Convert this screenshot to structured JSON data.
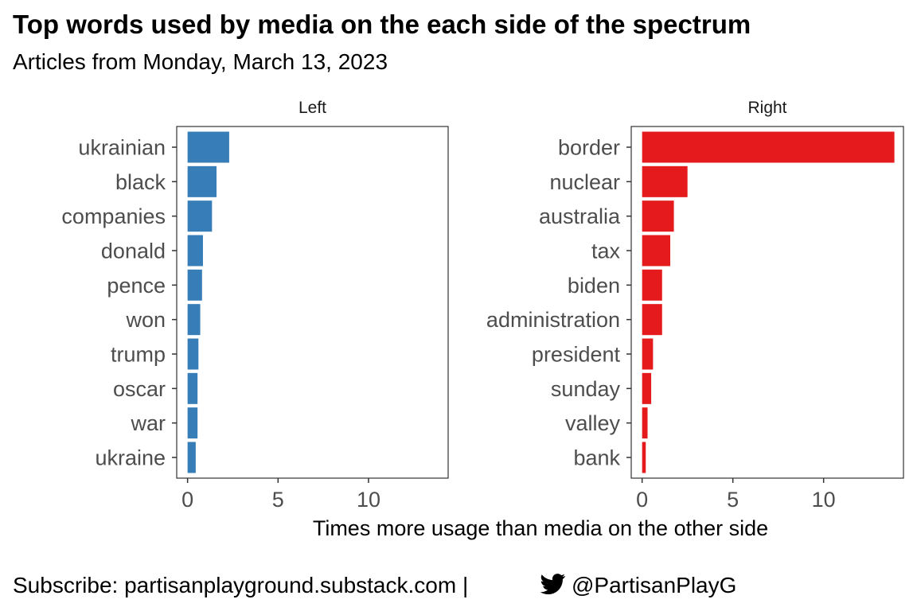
{
  "chart_data": {
    "type": "bar",
    "title": "Top words used by media on the each side of the spectrum",
    "subtitle": "Articles from Monday, March 13, 2023",
    "xlabel": "Times more usage than media on the other side",
    "ylabel": "",
    "xlim": [
      -0.6,
      14.4
    ],
    "xticks": [
      0,
      5,
      10
    ],
    "orientation": "horizontal",
    "panels": [
      {
        "label": "Left",
        "color": "#377EB8",
        "categories": [
          "ukrainian",
          "black",
          "companies",
          "donald",
          "pence",
          "won",
          "trump",
          "oscar",
          "war",
          "ukraine"
        ],
        "values": [
          2.3,
          1.6,
          1.35,
          0.85,
          0.8,
          0.7,
          0.6,
          0.55,
          0.55,
          0.45
        ]
      },
      {
        "label": "Right",
        "color": "#E41A1C",
        "categories": [
          "border",
          "nuclear",
          "australia",
          "tax",
          "biden",
          "administration",
          "president",
          "sunday",
          "valley",
          "bank"
        ],
        "values": [
          13.9,
          2.5,
          1.75,
          1.55,
          1.1,
          1.1,
          0.6,
          0.5,
          0.3,
          0.2
        ]
      }
    ],
    "caption": "Subscribe: partisanplayground.substack.com | 🐦 @PartisanPlayG",
    "caption_parts": {
      "prefix": "Subscribe: partisanplayground.substack.com |",
      "icon": "twitter-bird-icon",
      "handle": "@PartisanPlayG"
    }
  }
}
